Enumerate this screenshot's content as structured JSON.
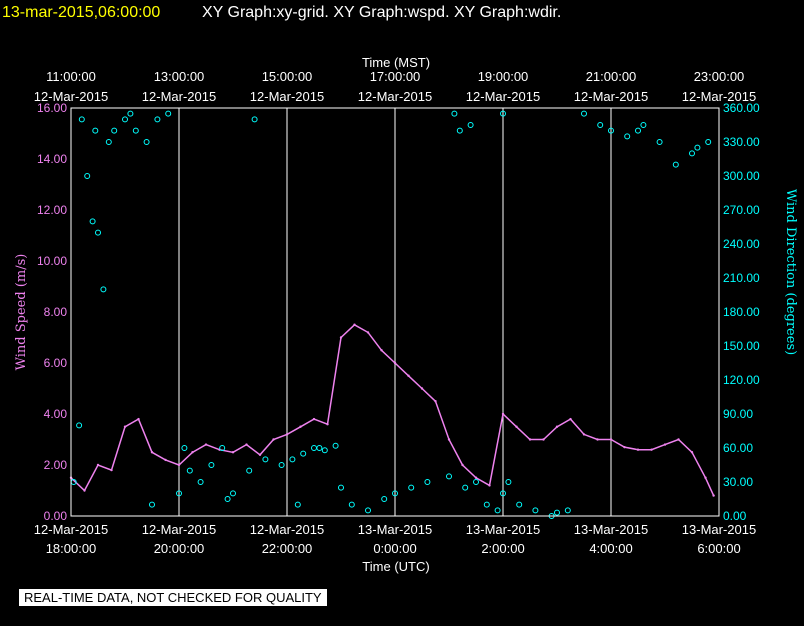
{
  "header": {
    "timestamp": "13-mar-2015,06:00:00",
    "titles": "XY Graph:xy-grid.  XY Graph:wspd.  XY Graph:wdir."
  },
  "disclaimer": "REAL-TIME DATA, NOT CHECKED FOR QUALITY",
  "colors": {
    "speed": "#ee82ee",
    "direction": "#00ffff",
    "grid": "#ffffff",
    "background": "#000000"
  },
  "chart_data": {
    "type": "scatter",
    "top_axis": {
      "label": "Time (MST)",
      "ticks": [
        {
          "time": "11:00:00",
          "date": "12-Mar-2015"
        },
        {
          "time": "13:00:00",
          "date": "12-Mar-2015"
        },
        {
          "time": "15:00:00",
          "date": "12-Mar-2015"
        },
        {
          "time": "17:00:00",
          "date": "12-Mar-2015"
        },
        {
          "time": "19:00:00",
          "date": "12-Mar-2015"
        },
        {
          "time": "21:00:00",
          "date": "12-Mar-2015"
        },
        {
          "time": "23:00:00",
          "date": "12-Mar-2015"
        }
      ]
    },
    "bottom_axis": {
      "label": "Time (UTC)",
      "ticks": [
        {
          "date": "12-Mar-2015",
          "time": "18:00:00"
        },
        {
          "date": "12-Mar-2015",
          "time": "20:00:00"
        },
        {
          "date": "12-Mar-2015",
          "time": "22:00:00"
        },
        {
          "date": "13-Mar-2015",
          "time": "0:00:00"
        },
        {
          "date": "13-Mar-2015",
          "time": "2:00:00"
        },
        {
          "date": "13-Mar-2015",
          "time": "4:00:00"
        },
        {
          "date": "13-Mar-2015",
          "time": "6:00:00"
        }
      ]
    },
    "x_range_hours_utc": [
      18,
      30
    ],
    "left_axis": {
      "label": "Wind Speed (m/s)",
      "ylim": [
        0,
        16
      ],
      "ticks": [
        "0.00",
        "2.00",
        "4.00",
        "6.00",
        "8.00",
        "10.00",
        "12.00",
        "14.00",
        "16.00"
      ]
    },
    "right_axis": {
      "label": "Wind Direction (degrees)",
      "ylim": [
        0,
        360
      ],
      "ticks": [
        "0.00",
        "30.00",
        "60.00",
        "90.00",
        "120.00",
        "150.00",
        "180.00",
        "210.00",
        "240.00",
        "270.00",
        "300.00",
        "330.00",
        "360.00"
      ]
    },
    "grid": "vertical lines at each time tick",
    "series": [
      {
        "name": "wspd",
        "style": "line",
        "x_hours_utc": [
          18.0,
          18.25,
          18.5,
          18.75,
          19.0,
          19.25,
          19.5,
          19.75,
          20.0,
          20.25,
          20.5,
          20.75,
          21.0,
          21.25,
          21.5,
          21.75,
          22.0,
          22.25,
          22.5,
          22.75,
          23.0,
          23.25,
          23.5,
          23.75,
          24.0,
          24.25,
          24.5,
          24.75,
          25.0,
          25.25,
          25.5,
          25.75,
          26.0,
          26.25,
          26.5,
          26.75,
          27.0,
          27.25,
          27.5,
          27.75,
          28.0,
          28.25,
          28.5,
          28.75,
          29.0,
          29.25,
          29.5,
          29.75,
          29.9
        ],
        "values": [
          1.5,
          1.0,
          2.0,
          1.8,
          3.5,
          3.8,
          2.5,
          2.2,
          2.0,
          2.5,
          2.8,
          2.6,
          2.5,
          2.8,
          2.4,
          3.0,
          3.2,
          3.5,
          3.8,
          3.6,
          7.0,
          7.5,
          7.2,
          6.5,
          6.0,
          5.5,
          5.0,
          4.5,
          3.0,
          2.0,
          1.5,
          1.2,
          4.0,
          3.5,
          3.0,
          3.0,
          3.5,
          3.8,
          3.2,
          3.0,
          3.0,
          2.7,
          2.6,
          2.6,
          2.8,
          3.0,
          2.5,
          1.5,
          0.8
        ]
      },
      {
        "name": "wdir",
        "style": "circles",
        "x_hours_utc": [
          18.05,
          18.15,
          18.3,
          18.4,
          18.5,
          18.6,
          18.8,
          19.0,
          19.2,
          19.4,
          19.6,
          19.8,
          20.0,
          20.2,
          20.4,
          20.6,
          20.8,
          21.0,
          21.3,
          21.6,
          21.9,
          22.1,
          22.3,
          22.5,
          22.7,
          22.9,
          23.0,
          23.2,
          23.5,
          23.8,
          24.0,
          24.3,
          24.6,
          25.0,
          25.3,
          25.5,
          25.7,
          25.9,
          26.0,
          26.1,
          26.3,
          26.6,
          26.9,
          27.2,
          27.5,
          27.8,
          28.0,
          28.3,
          28.6,
          28.9,
          29.2,
          29.5,
          29.8,
          18.2,
          18.45,
          18.7,
          19.1,
          19.5,
          20.1,
          20.9,
          21.4,
          22.2,
          22.6,
          25.1,
          25.2,
          25.4,
          26.0,
          27.0,
          28.5,
          29.6
        ],
        "values": [
          30,
          80,
          300,
          260,
          250,
          200,
          340,
          350,
          340,
          330,
          350,
          355,
          20,
          40,
          30,
          45,
          60,
          20,
          40,
          50,
          45,
          50,
          55,
          60,
          58,
          62,
          25,
          10,
          5,
          15,
          20,
          25,
          30,
          35,
          25,
          30,
          10,
          5,
          20,
          30,
          10,
          5,
          0,
          5,
          355,
          345,
          340,
          335,
          345,
          330,
          310,
          320,
          330,
          350,
          340,
          330,
          355,
          10,
          60,
          15,
          350,
          10,
          60,
          355,
          340,
          345,
          355,
          3,
          340,
          325
        ]
      }
    ]
  }
}
